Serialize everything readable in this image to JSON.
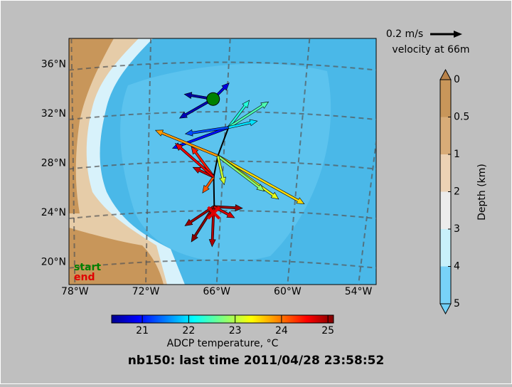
{
  "title": "nb150: last time 2011/04/28 23:58:52",
  "map": {
    "xlim": [
      -78.5,
      -52.5
    ],
    "ylim": [
      18.2,
      38.1
    ],
    "lon_ticks": [
      {
        "value": -78,
        "label": "78°W"
      },
      {
        "value": -72,
        "label": "72°W"
      },
      {
        "value": -66,
        "label": "66°W"
      },
      {
        "value": -60,
        "label": "60°W"
      },
      {
        "value": -54,
        "label": "54°W"
      }
    ],
    "lat_ticks": [
      {
        "value": 20,
        "label": "20°N"
      },
      {
        "value": 24,
        "label": "24°N"
      },
      {
        "value": 28,
        "label": "28°N"
      },
      {
        "value": 32,
        "label": "32°N"
      },
      {
        "value": 36,
        "label": "36°N"
      }
    ],
    "track": {
      "lon": [
        -65.0,
        -65.9,
        -66.25,
        -66.2
      ],
      "lat": [
        30.9,
        28.6,
        26.9,
        24.2
      ]
    },
    "start": {
      "label": "start",
      "color": "#008000",
      "lon": -66.3,
      "lat": 33.2
    },
    "end": {
      "label": "end",
      "color": "#e00000",
      "lon": -66.25,
      "lat": 24.0
    },
    "vectors": [
      {
        "lon": -66.3,
        "lat": 33.2,
        "u": -0.18,
        "v": 0.03,
        "temp": 20.5
      },
      {
        "lon": -66.3,
        "lat": 33.2,
        "u": -0.21,
        "v": -0.12,
        "temp": 20.6
      },
      {
        "lon": -66.3,
        "lat": 33.2,
        "u": 0.1,
        "v": 0.1,
        "temp": 20.8
      },
      {
        "lon": -65.0,
        "lat": 30.9,
        "u": -0.35,
        "v": -0.13,
        "temp": 21.0
      },
      {
        "lon": -65.0,
        "lat": 30.9,
        "u": -0.27,
        "v": -0.04,
        "temp": 21.3
      },
      {
        "lon": -65.0,
        "lat": 30.9,
        "u": 0.13,
        "v": 0.17,
        "temp": 22.3
      },
      {
        "lon": -65.0,
        "lat": 30.9,
        "u": 0.25,
        "v": 0.16,
        "temp": 22.5
      },
      {
        "lon": -65.0,
        "lat": 30.9,
        "u": 0.18,
        "v": 0.04,
        "temp": 22.0
      },
      {
        "lon": -65.9,
        "lat": 28.6,
        "u": -0.39,
        "v": 0.16,
        "temp": 23.8
      },
      {
        "lon": -65.9,
        "lat": 28.6,
        "u": 0.54,
        "v": -0.3,
        "temp": 23.5
      },
      {
        "lon": -65.9,
        "lat": 28.6,
        "u": 0.38,
        "v": -0.27,
        "temp": 23.2
      },
      {
        "lon": -65.9,
        "lat": 28.6,
        "u": 0.29,
        "v": -0.22,
        "temp": 22.8
      },
      {
        "lon": -65.9,
        "lat": 28.6,
        "u": 0.04,
        "v": -0.18,
        "temp": 23.1
      },
      {
        "lon": -66.25,
        "lat": 26.9,
        "u": -0.14,
        "v": 0.19,
        "temp": 24.4
      },
      {
        "lon": -66.25,
        "lat": 26.9,
        "u": -0.13,
        "v": 0.06,
        "temp": 24.8
      },
      {
        "lon": -66.25,
        "lat": 26.9,
        "u": -0.07,
        "v": -0.1,
        "temp": 24.1
      },
      {
        "lon": -66.25,
        "lat": 26.9,
        "u": -0.24,
        "v": 0.21,
        "temp": 24.6
      },
      {
        "lon": -66.25,
        "lat": 24.5,
        "u": 0.18,
        "v": -0.01,
        "temp": 25.0
      },
      {
        "lon": -66.25,
        "lat": 24.5,
        "u": -0.14,
        "v": -0.22,
        "temp": 25.1
      },
      {
        "lon": -66.25,
        "lat": 24.5,
        "u": -0.01,
        "v": -0.25,
        "temp": 24.9
      },
      {
        "lon": -66.25,
        "lat": 24.5,
        "u": -0.18,
        "v": -0.12,
        "temp": 25.0
      },
      {
        "lon": -66.25,
        "lat": 24.5,
        "u": 0.13,
        "v": -0.07,
        "temp": 24.7
      }
    ]
  },
  "scale": {
    "value": 0.2,
    "label": "0.2 m/s",
    "caption": "velocity at 66m"
  },
  "temp_colorbar": {
    "label": "ADCP temperature, °C",
    "lim": [
      20.34,
      25.12
    ],
    "ticks": [
      21,
      22,
      23,
      24,
      25
    ]
  },
  "depth_colorbar": {
    "label": "Depth (km)",
    "ticks": [
      0,
      0.5,
      1,
      2,
      3,
      4,
      5
    ],
    "colors": [
      "#c8965a",
      "#d8ac78",
      "#ecd2b4",
      "#ececec",
      "#c8f0fa",
      "#78d2f8"
    ]
  }
}
